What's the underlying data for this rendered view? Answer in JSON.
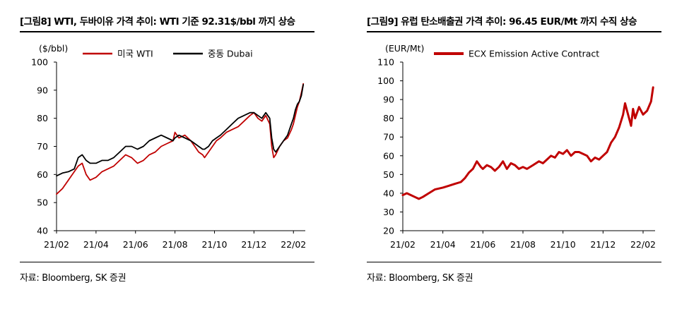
{
  "chart_data": [
    {
      "type": "line",
      "title": "[그림8] WTI, 두바이유 가격 추이: WTI 기준 92.31$/bbl 까지 상승",
      "unit_label": "($/bbl)",
      "xlabel": "",
      "ylabel": "($/bbl)",
      "ylim": [
        40,
        100
      ],
      "yticks": [
        40,
        50,
        60,
        70,
        80,
        90,
        100
      ],
      "xlim": [
        0,
        12.6
      ],
      "xticks": [
        0,
        2,
        4,
        6,
        8,
        10,
        12
      ],
      "xtick_labels": [
        "21/02",
        "21/04",
        "21/06",
        "21/08",
        "21/10",
        "21/12",
        "22/02"
      ],
      "legend_position": "top",
      "grid": false,
      "source": "자료: Bloomberg, SK 증권",
      "series": [
        {
          "name": "미국 WTI",
          "color": "#c00000",
          "x": [
            0,
            0.3,
            0.6,
            0.9,
            1.1,
            1.3,
            1.5,
            1.7,
            2.0,
            2.3,
            2.6,
            2.9,
            3.2,
            3.5,
            3.8,
            4.1,
            4.4,
            4.7,
            5.0,
            5.3,
            5.6,
            5.9,
            6.0,
            6.2,
            6.5,
            6.8,
            7.0,
            7.2,
            7.4,
            7.5,
            7.7,
            7.9,
            8.1,
            8.3,
            8.6,
            8.9,
            9.2,
            9.5,
            9.8,
            10.0,
            10.2,
            10.4,
            10.6,
            10.8,
            10.9,
            11.0,
            11.1,
            11.3,
            11.5,
            11.7,
            11.9,
            12.0,
            12.1,
            12.2,
            12.3,
            12.4,
            12.5
          ],
          "y": [
            53,
            55,
            58,
            61,
            63,
            64,
            60,
            58,
            59,
            61,
            62,
            63,
            65,
            67,
            66,
            64,
            65,
            67,
            68,
            70,
            71,
            72,
            75,
            73,
            74,
            72,
            70,
            68,
            67,
            66,
            68,
            70,
            72,
            73,
            75,
            76,
            77,
            79,
            81,
            82,
            80,
            79,
            81,
            78,
            70,
            66,
            67,
            70,
            72,
            73,
            76,
            78,
            81,
            84,
            86,
            89,
            92.3
          ]
        },
        {
          "name": "중동 Dubai",
          "color": "#000000",
          "x": [
            0,
            0.3,
            0.6,
            0.9,
            1.1,
            1.3,
            1.5,
            1.7,
            2.0,
            2.3,
            2.6,
            2.9,
            3.2,
            3.5,
            3.8,
            4.1,
            4.4,
            4.7,
            5.0,
            5.3,
            5.6,
            5.9,
            6.0,
            6.2,
            6.5,
            6.8,
            7.0,
            7.2,
            7.4,
            7.5,
            7.7,
            7.9,
            8.1,
            8.3,
            8.6,
            8.9,
            9.2,
            9.5,
            9.8,
            10.0,
            10.2,
            10.4,
            10.6,
            10.8,
            10.9,
            11.0,
            11.1,
            11.3,
            11.5,
            11.7,
            11.9,
            12.0,
            12.1,
            12.2,
            12.3,
            12.4,
            12.5
          ],
          "y": [
            59.5,
            60.5,
            61,
            62,
            66,
            67,
            65,
            64,
            64,
            65,
            65,
            66,
            68,
            70,
            70,
            69,
            70,
            72,
            73,
            74,
            73,
            72,
            73,
            74,
            73,
            72,
            71,
            70,
            69,
            69,
            70,
            72,
            73,
            74,
            76,
            78,
            80,
            81,
            82,
            82,
            81,
            80,
            82,
            80,
            73,
            69,
            68,
            70,
            72,
            74,
            78,
            80,
            83,
            85,
            86,
            88,
            92
          ]
        }
      ]
    },
    {
      "type": "line",
      "title": "[그림9] 유럽 탄소배출권 가격 추이: 96.45 EUR/Mt 까지 수직 상승",
      "unit_label": "(EUR/Mt)",
      "xlabel": "",
      "ylabel": "(EUR/Mt)",
      "ylim": [
        20,
        110
      ],
      "yticks": [
        20,
        30,
        40,
        50,
        60,
        70,
        80,
        90,
        100,
        110
      ],
      "xlim": [
        0,
        12.6
      ],
      "xticks": [
        0,
        2,
        4,
        6,
        8,
        10,
        12
      ],
      "xtick_labels": [
        "21/02",
        "21/04",
        "21/06",
        "21/08",
        "21/10",
        "21/12",
        "22/02"
      ],
      "legend_position": "top",
      "grid": false,
      "source": "자료: Bloomberg, SK 증권",
      "series": [
        {
          "name": "ECX Emission Active Contract",
          "color": "#c00000",
          "x": [
            0,
            0.2,
            0.4,
            0.6,
            0.8,
            1.0,
            1.3,
            1.6,
            2.0,
            2.3,
            2.6,
            2.9,
            3.1,
            3.3,
            3.5,
            3.7,
            3.9,
            4.0,
            4.2,
            4.4,
            4.6,
            4.8,
            5.0,
            5.2,
            5.4,
            5.6,
            5.8,
            6.0,
            6.2,
            6.5,
            6.8,
            7.0,
            7.2,
            7.4,
            7.6,
            7.8,
            8.0,
            8.2,
            8.4,
            8.6,
            8.8,
            9.0,
            9.2,
            9.4,
            9.6,
            9.8,
            10.0,
            10.2,
            10.4,
            10.6,
            10.8,
            11.0,
            11.1,
            11.2,
            11.3,
            11.4,
            11.5,
            11.6,
            11.8,
            12.0,
            12.2,
            12.4,
            12.5
          ],
          "y": [
            39,
            40,
            39,
            38,
            37,
            38,
            40,
            42,
            43,
            44,
            45,
            46,
            48,
            51,
            53,
            57,
            54,
            53,
            55,
            54,
            52,
            54,
            57,
            53,
            56,
            55,
            53,
            54,
            53,
            55,
            57,
            56,
            58,
            60,
            59,
            62,
            61,
            63,
            60,
            62,
            62,
            61,
            60,
            57,
            59,
            58,
            60,
            62,
            67,
            70,
            75,
            82,
            88,
            84,
            80,
            76,
            85,
            80,
            86,
            82,
            84,
            89,
            96.5
          ]
        }
      ]
    }
  ]
}
